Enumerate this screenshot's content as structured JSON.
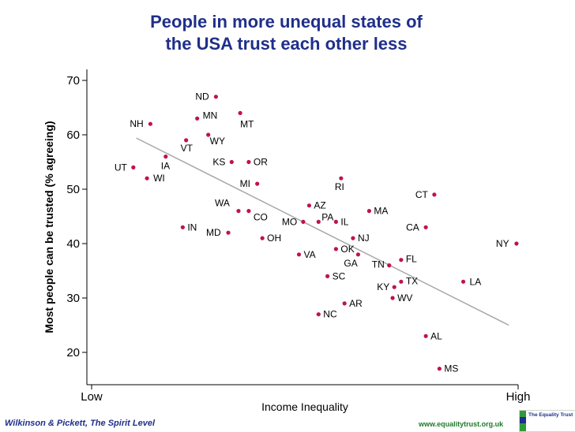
{
  "title_lines": [
    "People in more unequal states of",
    "the USA trust each other less"
  ],
  "footer": {
    "citation": "Wilkinson & Pickett, The Spirit Level",
    "website": "www.equalitytrust.org.uk",
    "logo_text": "The Equality Trust"
  },
  "colors": {
    "title": "#1f2f8a",
    "point": "#c0134a",
    "trendline": "#a8a8a8",
    "axis": "#000000"
  },
  "chart_data": {
    "type": "scatter",
    "title": "People in more unequal states of the USA trust each other less",
    "xlabel": "Income Inequality",
    "ylabel": "Most people can be trusted (% agreeing)",
    "x_tick_labels": [
      "Low",
      "High"
    ],
    "xlim": [
      0,
      100
    ],
    "ylim": [
      15,
      72
    ],
    "yticks": [
      20,
      30,
      40,
      50,
      60,
      70
    ],
    "trendline": {
      "x": [
        10.5,
        98
      ],
      "y": [
        59.4,
        25
      ]
    },
    "points": [
      {
        "label": "ND",
        "x": 29.2,
        "y": 67
      },
      {
        "label": "MN",
        "x": 24.8,
        "y": 63
      },
      {
        "label": "MT",
        "x": 34.9,
        "y": 64
      },
      {
        "label": "NH",
        "x": 13.8,
        "y": 62
      },
      {
        "label": "WY",
        "x": 27.4,
        "y": 60
      },
      {
        "label": "VT",
        "x": 22.2,
        "y": 59
      },
      {
        "label": "IA",
        "x": 17.4,
        "y": 56
      },
      {
        "label": "KS",
        "x": 32.9,
        "y": 55
      },
      {
        "label": "OR",
        "x": 36.9,
        "y": 55
      },
      {
        "label": "UT",
        "x": 9.8,
        "y": 54
      },
      {
        "label": "WI",
        "x": 13.0,
        "y": 52
      },
      {
        "label": "MI",
        "x": 38.9,
        "y": 51
      },
      {
        "label": "RI",
        "x": 58.6,
        "y": 52
      },
      {
        "label": "CT",
        "x": 80.5,
        "y": 49
      },
      {
        "label": "WA",
        "x": 34.5,
        "y": 46
      },
      {
        "label": "CO",
        "x": 36.9,
        "y": 46
      },
      {
        "label": "AZ",
        "x": 51.1,
        "y": 47
      },
      {
        "label": "MA",
        "x": 65.2,
        "y": 46
      },
      {
        "label": "MO",
        "x": 49.7,
        "y": 44
      },
      {
        "label": "PA",
        "x": 53.3,
        "y": 44
      },
      {
        "label": "IL",
        "x": 57.4,
        "y": 44
      },
      {
        "label": "CA",
        "x": 78.5,
        "y": 43
      },
      {
        "label": "IN",
        "x": 21.4,
        "y": 43
      },
      {
        "label": "MD",
        "x": 32.1,
        "y": 42
      },
      {
        "label": "OH",
        "x": 40.1,
        "y": 41
      },
      {
        "label": "NJ",
        "x": 61.4,
        "y": 41
      },
      {
        "label": "NY",
        "x": 99.8,
        "y": 40
      },
      {
        "label": "OK",
        "x": 57.4,
        "y": 39
      },
      {
        "label": "VA",
        "x": 48.7,
        "y": 38
      },
      {
        "label": "GA",
        "x": 62.6,
        "y": 38
      },
      {
        "label": "FL",
        "x": 72.7,
        "y": 37
      },
      {
        "label": "TN",
        "x": 69.9,
        "y": 36
      },
      {
        "label": "SC",
        "x": 55.4,
        "y": 34
      },
      {
        "label": "LA",
        "x": 87.3,
        "y": 33
      },
      {
        "label": "TX",
        "x": 72.7,
        "y": 33
      },
      {
        "label": "KY",
        "x": 71.1,
        "y": 32
      },
      {
        "label": "WV",
        "x": 70.7,
        "y": 30
      },
      {
        "label": "AR",
        "x": 59.4,
        "y": 29
      },
      {
        "label": "NC",
        "x": 53.3,
        "y": 27
      },
      {
        "label": "AL",
        "x": 78.5,
        "y": 23
      },
      {
        "label": "MS",
        "x": 81.7,
        "y": 17
      }
    ]
  }
}
